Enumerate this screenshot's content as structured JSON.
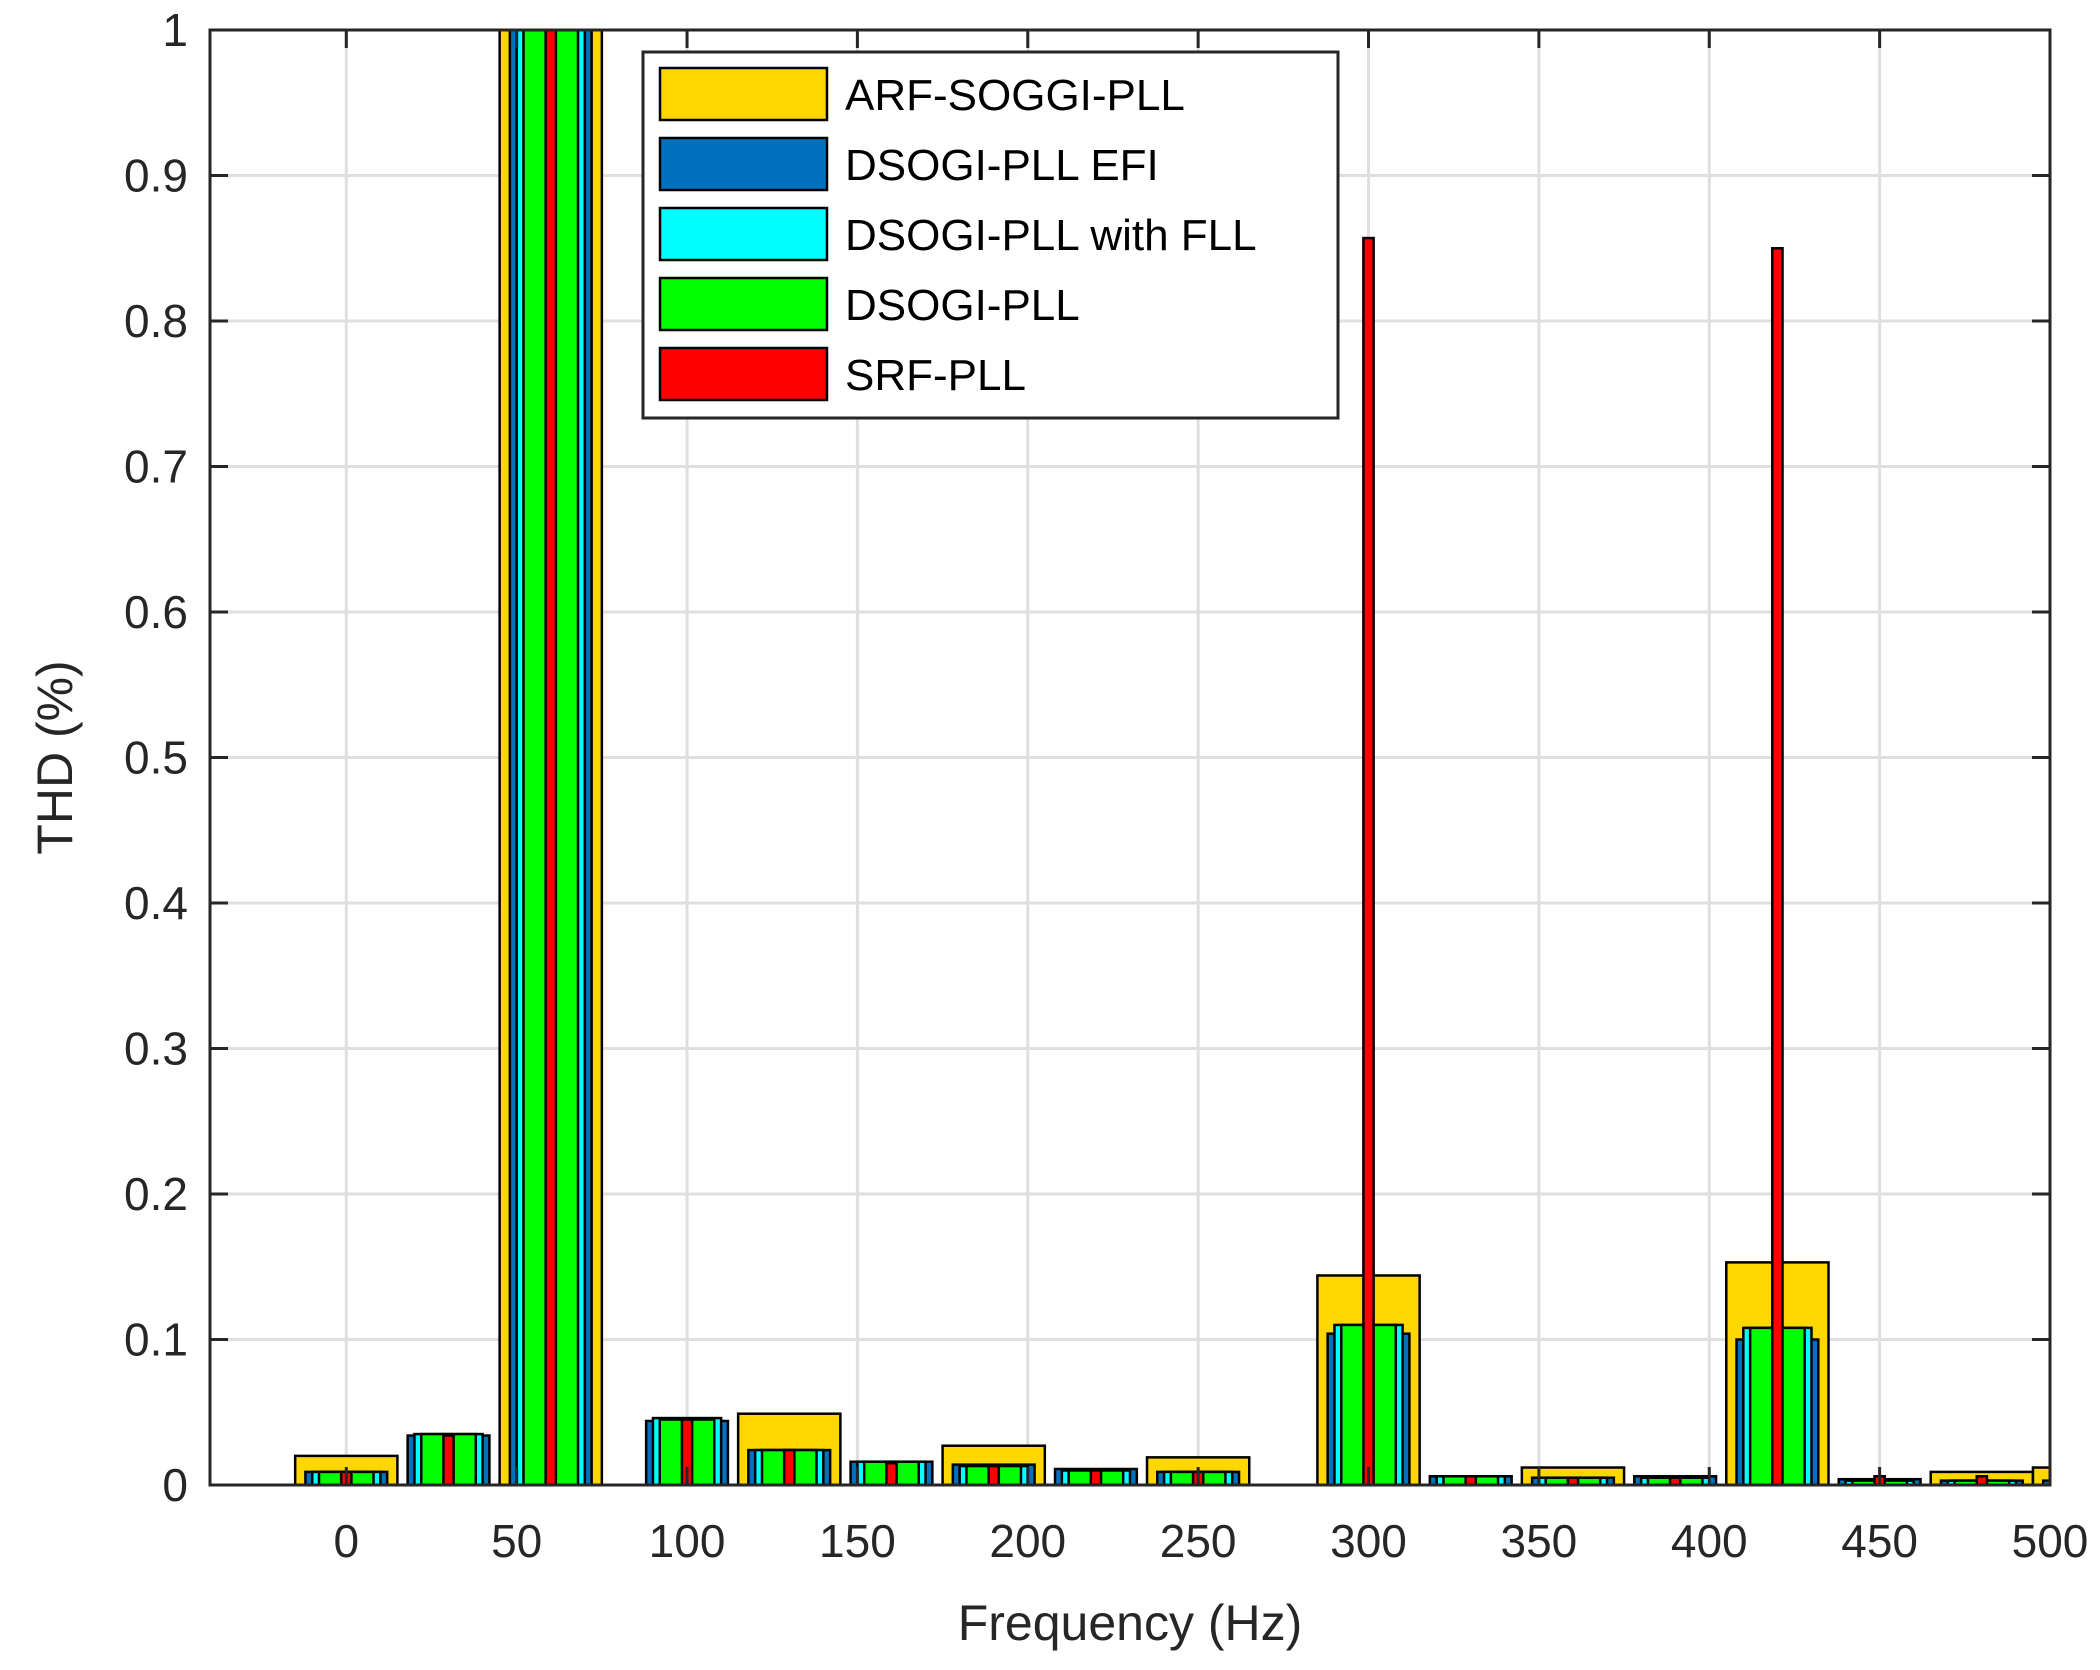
{
  "chart_data": {
    "type": "bar",
    "xlabel": "Frequency (Hz)",
    "ylabel": "THD (%)",
    "xlim": [
      -40,
      500
    ],
    "ylim": [
      0,
      1
    ],
    "x_ticks": [
      0,
      50,
      100,
      150,
      200,
      250,
      300,
      350,
      400,
      450,
      500
    ],
    "y_ticks": [
      0,
      0.1,
      0.2,
      0.3,
      0.4,
      0.5,
      0.6,
      0.7,
      0.8,
      0.9,
      1
    ],
    "y_tick_labels": [
      "0",
      "0.1",
      "0.2",
      "0.3",
      "0.4",
      "0.5",
      "0.6",
      "0.7",
      "0.8",
      "0.9",
      "1"
    ],
    "grid": true,
    "legend_position": "top-center",
    "categories": [
      0,
      30,
      60,
      100,
      130,
      160,
      190,
      220,
      250,
      300,
      330,
      360,
      390,
      420,
      450,
      480,
      510
    ],
    "series": [
      {
        "name": "ARF-SOGGI-PLL",
        "color": "#FFD700",
        "width_hz": 30,
        "values": [
          0.02,
          0.0,
          1.0,
          0.0,
          0.049,
          0.0,
          0.027,
          0.0,
          0.019,
          0.144,
          0.0,
          0.012,
          0.0,
          0.153,
          0.0,
          0.009,
          0.012
        ]
      },
      {
        "name": "DSOGI-PLL EFI",
        "color": "#0072BD",
        "width_hz": 24,
        "values": [
          0.009,
          0.034,
          1.0,
          0.044,
          0.024,
          0.016,
          0.014,
          0.011,
          0.009,
          0.104,
          0.006,
          0.005,
          0.006,
          0.1,
          0.004,
          0.003,
          0.003
        ]
      },
      {
        "name": "DSOGI-PLL with FLL",
        "color": "#00FFFF",
        "width_hz": 20,
        "values": [
          0.009,
          0.035,
          1.0,
          0.046,
          0.024,
          0.016,
          0.013,
          0.01,
          0.009,
          0.11,
          0.006,
          0.005,
          0.005,
          0.108,
          0.003,
          0.003,
          0.002
        ]
      },
      {
        "name": "DSOGI-PLL",
        "color": "#00FF00",
        "width_hz": 16,
        "values": [
          0.009,
          0.035,
          1.0,
          0.045,
          0.024,
          0.016,
          0.013,
          0.01,
          0.009,
          0.11,
          0.006,
          0.005,
          0.005,
          0.108,
          0.003,
          0.003,
          0.002
        ]
      },
      {
        "name": "SRF-PLL",
        "color": "#FF0000",
        "width_hz": 3,
        "values": [
          0.009,
          0.034,
          1.0,
          0.045,
          0.024,
          0.015,
          0.013,
          0.01,
          0.009,
          0.857,
          0.006,
          0.005,
          0.005,
          0.85,
          0.006,
          0.006,
          0.003
        ]
      }
    ]
  }
}
